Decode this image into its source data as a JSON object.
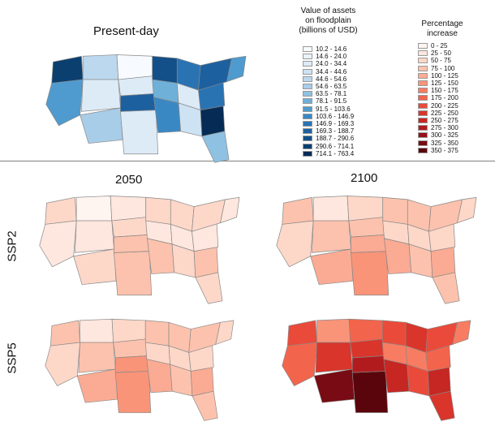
{
  "present": {
    "title": "Present-day"
  },
  "columns": {
    "left": "2050",
    "right": "2100"
  },
  "rows": {
    "top": "SSP2",
    "bottom": "SSP5"
  },
  "value_legend": {
    "title_lines": [
      "Value of assets",
      "on floodplain",
      "(billions of USD)"
    ],
    "items": [
      {
        "label": "10.2 - 14.6",
        "color": "#f7fbff"
      },
      {
        "label": "14.6 - 24.0",
        "color": "#eaf3fb"
      },
      {
        "label": "24.0 - 34.4",
        "color": "#ddebf7"
      },
      {
        "label": "34.4 - 44.6",
        "color": "#cde2f2"
      },
      {
        "label": "44.6 - 54.6",
        "color": "#bcd8ee"
      },
      {
        "label": "54.6 - 63.5",
        "color": "#a8cde8"
      },
      {
        "label": "63.5 - 78.1",
        "color": "#8fc1e2"
      },
      {
        "label": "78.1 - 91.5",
        "color": "#6fb0d9"
      },
      {
        "label": "91.5 - 103.6",
        "color": "#4f9bcf"
      },
      {
        "label": "103.6 - 146.9",
        "color": "#3a88c3"
      },
      {
        "label": "146.9 - 169.3",
        "color": "#2a73b3"
      },
      {
        "label": "169.3 - 188.7",
        "color": "#1d609f"
      },
      {
        "label": "188.7 - 290.6",
        "color": "#134f88"
      },
      {
        "label": "290.6 - 714.1",
        "color": "#0b3f70"
      },
      {
        "label": "714.1 - 763.4",
        "color": "#062c55"
      }
    ]
  },
  "pct_legend": {
    "title_lines": [
      "Percentage",
      "increase"
    ],
    "items": [
      {
        "label": "0 - 25",
        "color": "#fff5f0"
      },
      {
        "label": "25 - 50",
        "color": "#fee7de"
      },
      {
        "label": "50 - 75",
        "color": "#fdd7c8"
      },
      {
        "label": "75 - 100",
        "color": "#fcc2ad"
      },
      {
        "label": "100 - 125",
        "color": "#fbab93"
      },
      {
        "label": "125 - 150",
        "color": "#f99479"
      },
      {
        "label": "150 - 175",
        "color": "#f77c62"
      },
      {
        "label": "175 - 200",
        "color": "#f2644c"
      },
      {
        "label": "200 - 225",
        "color": "#ea4a3a"
      },
      {
        "label": "225 - 250",
        "color": "#d9352b"
      },
      {
        "label": "250 - 275",
        "color": "#c62722"
      },
      {
        "label": "275 - 300",
        "color": "#b11b1e"
      },
      {
        "label": "300 - 325",
        "color": "#941219"
      },
      {
        "label": "325 - 350",
        "color": "#780b13"
      },
      {
        "label": "350 - 375",
        "color": "#5a050c"
      }
    ]
  },
  "maps": {
    "present": [
      "#0b3f70",
      "#4f9bcf",
      "#bcd8ee",
      "#ddebf7",
      "#a8cde8",
      "#ddebf7",
      "#f7fbff",
      "#ddebf7",
      "#1d609f",
      "#134f88",
      "#6fb0d9",
      "#3a88c3",
      "#2a73b3",
      "#ddebf7",
      "#cde2f2",
      "#062c55",
      "#8fc1e2",
      "#2a73b3",
      "#1d609f",
      "#4f9bcf"
    ],
    "ssp2_2050": [
      "#fdd7c8",
      "#fee7de",
      "#fff5f0",
      "#fee7de",
      "#fdd7c8",
      "#fcc2ad",
      "#fee7de",
      "#fdd7c8",
      "#fcc2ad",
      "#fdd7c8",
      "#fee7de",
      "#fcc2ad",
      "#fdd7c8",
      "#fee7de",
      "#fdd7c8",
      "#fcc2ad",
      "#fdd7c8",
      "#fee7de",
      "#fdd7c8",
      "#fee7de"
    ],
    "ssp2_2100": [
      "#fcc2ad",
      "#fdd7c8",
      "#fee7de",
      "#fcc2ad",
      "#fbab93",
      "#f99479",
      "#fdd7c8",
      "#fcc2ad",
      "#fbab93",
      "#fcc2ad",
      "#fdd7c8",
      "#fbab93",
      "#fcc2ad",
      "#fdd7c8",
      "#fcc2ad",
      "#fbab93",
      "#fcc2ad",
      "#fdd7c8",
      "#fcc2ad",
      "#fdd7c8"
    ],
    "ssp5_2050": [
      "#fcc2ad",
      "#fdd7c8",
      "#fee7de",
      "#fcc2ad",
      "#fbab93",
      "#f99479",
      "#fdd7c8",
      "#fcc2ad",
      "#f99479",
      "#fcc2ad",
      "#fdd7c8",
      "#fbab93",
      "#fcc2ad",
      "#fdd7c8",
      "#fcc2ad",
      "#fbab93",
      "#fcc2ad",
      "#fdd7c8",
      "#fcc2ad",
      "#fdd7c8"
    ],
    "ssp5_2100": [
      "#ea4a3a",
      "#f2644c",
      "#f99479",
      "#d9352b",
      "#780b13",
      "#5a050c",
      "#f2644c",
      "#d9352b",
      "#b11b1e",
      "#ea4a3a",
      "#f77c62",
      "#c62722",
      "#d9352b",
      "#f77c62",
      "#ea4a3a",
      "#c62722",
      "#d9352b",
      "#f2644c",
      "#ea4a3a",
      "#f77c62"
    ]
  }
}
